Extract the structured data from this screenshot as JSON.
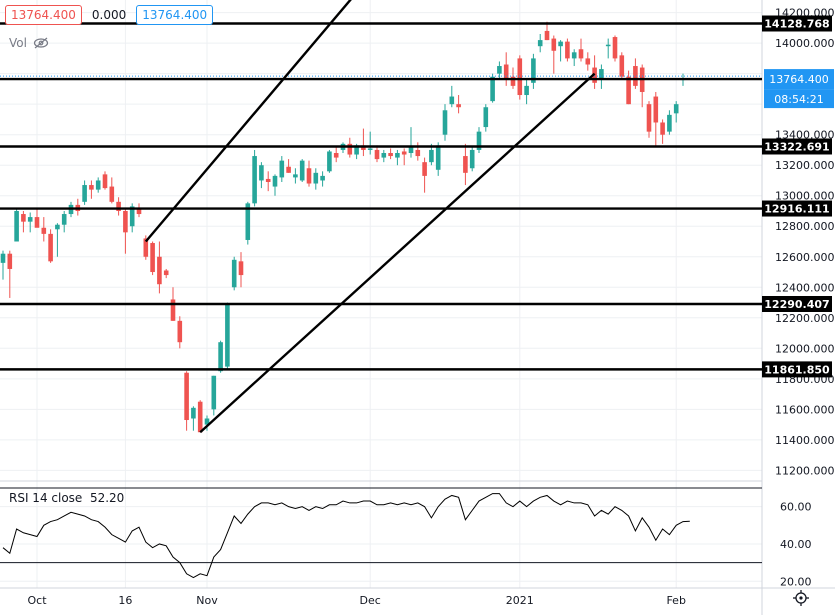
{
  "legend": {
    "open": "13764.400",
    "change": "0.000",
    "close": "13764.400"
  },
  "volume_label": "Vol",
  "rsi_label": "RSI 14 close",
  "rsi_value": "52.20",
  "price_tag": {
    "price": "13764.400",
    "countdown": "08:54:21"
  },
  "colors": {
    "up": "#26a69a",
    "down": "#ef5350",
    "blue": "#2196f3",
    "line": "#000000"
  },
  "chart_data": [
    {
      "type": "candlestick",
      "x_ticks": [
        "Oct",
        "16",
        "Nov",
        "Dec",
        "2021",
        "Feb"
      ],
      "y_ticks": [
        "14200.000",
        "14000.000",
        "13800.000",
        "13600.000",
        "13400.000",
        "13200.000",
        "13000.000",
        "12800.000",
        "12600.000",
        "12400.000",
        "12200.000",
        "12000.000",
        "11800.000",
        "11600.000",
        "11400.000",
        "11200.000"
      ],
      "ylim": [
        11150,
        14250
      ],
      "grid": true,
      "candles": [
        {
          "o": 12560,
          "h": 12640,
          "l": 12450,
          "c": 12620
        },
        {
          "o": 12620,
          "h": 12640,
          "l": 12330,
          "c": 12520
        },
        {
          "o": 12700,
          "h": 12920,
          "l": 12700,
          "c": 12900
        },
        {
          "o": 12880,
          "h": 12900,
          "l": 12760,
          "c": 12830
        },
        {
          "o": 12830,
          "h": 12890,
          "l": 12760,
          "c": 12860
        },
        {
          "o": 12860,
          "h": 12920,
          "l": 12800,
          "c": 12790
        },
        {
          "o": 12790,
          "h": 12860,
          "l": 12700,
          "c": 12750
        },
        {
          "o": 12750,
          "h": 12780,
          "l": 12560,
          "c": 12570
        },
        {
          "o": 12780,
          "h": 12820,
          "l": 12600,
          "c": 12810
        },
        {
          "o": 12810,
          "h": 12900,
          "l": 12760,
          "c": 12880
        },
        {
          "o": 12880,
          "h": 12960,
          "l": 12860,
          "c": 12940
        },
        {
          "o": 12940,
          "h": 12980,
          "l": 12870,
          "c": 12900
        },
        {
          "o": 12960,
          "h": 13100,
          "l": 12940,
          "c": 13070
        },
        {
          "o": 13070,
          "h": 13100,
          "l": 12980,
          "c": 13040
        },
        {
          "o": 13040,
          "h": 13120,
          "l": 13020,
          "c": 13100
        },
        {
          "o": 13140,
          "h": 13160,
          "l": 13040,
          "c": 13050
        },
        {
          "o": 13060,
          "h": 13120,
          "l": 12950,
          "c": 12960
        },
        {
          "o": 12960,
          "h": 12990,
          "l": 12870,
          "c": 12900
        },
        {
          "o": 12900,
          "h": 12920,
          "l": 12620,
          "c": 12760
        },
        {
          "o": 12800,
          "h": 12950,
          "l": 12760,
          "c": 12930
        },
        {
          "o": 12910,
          "h": 12950,
          "l": 12860,
          "c": 12880
        },
        {
          "o": 12720,
          "h": 12740,
          "l": 12580,
          "c": 12600
        },
        {
          "o": 12690,
          "h": 12700,
          "l": 12480,
          "c": 12500
        },
        {
          "o": 12600,
          "h": 12700,
          "l": 12360,
          "c": 12420
        },
        {
          "o": 12510,
          "h": 12520,
          "l": 12460,
          "c": 12480
        },
        {
          "o": 12320,
          "h": 12400,
          "l": 12180,
          "c": 12180
        },
        {
          "o": 12180,
          "h": 12210,
          "l": 12000,
          "c": 12040
        },
        {
          "o": 11840,
          "h": 11850,
          "l": 11460,
          "c": 11530
        },
        {
          "o": 11540,
          "h": 11620,
          "l": 11460,
          "c": 11610
        },
        {
          "o": 11650,
          "h": 11660,
          "l": 11450,
          "c": 11450
        },
        {
          "o": 11500,
          "h": 11560,
          "l": 11460,
          "c": 11540
        },
        {
          "o": 11600,
          "h": 11820,
          "l": 11560,
          "c": 11820
        },
        {
          "o": 11850,
          "h": 12050,
          "l": 11840,
          "c": 12040
        },
        {
          "o": 11880,
          "h": 12300,
          "l": 11860,
          "c": 12290
        },
        {
          "o": 12400,
          "h": 12600,
          "l": 12380,
          "c": 12580
        },
        {
          "o": 12570,
          "h": 12630,
          "l": 12400,
          "c": 12480
        },
        {
          "o": 12710,
          "h": 12960,
          "l": 12680,
          "c": 12950
        },
        {
          "o": 12950,
          "h": 13300,
          "l": 12930,
          "c": 13260
        },
        {
          "o": 13100,
          "h": 13220,
          "l": 13050,
          "c": 13200
        },
        {
          "o": 13110,
          "h": 13160,
          "l": 13030,
          "c": 13090
        },
        {
          "o": 13060,
          "h": 13140,
          "l": 13000,
          "c": 13130
        },
        {
          "o": 13120,
          "h": 13260,
          "l": 13090,
          "c": 13230
        },
        {
          "o": 13190,
          "h": 13240,
          "l": 13150,
          "c": 13150
        },
        {
          "o": 13120,
          "h": 13180,
          "l": 13080,
          "c": 13140
        },
        {
          "o": 13100,
          "h": 13240,
          "l": 13090,
          "c": 13230
        },
        {
          "o": 13180,
          "h": 13230,
          "l": 13060,
          "c": 13080
        },
        {
          "o": 13080,
          "h": 13180,
          "l": 13040,
          "c": 13150
        },
        {
          "o": 13100,
          "h": 13160,
          "l": 13060,
          "c": 13130
        },
        {
          "o": 13160,
          "h": 13300,
          "l": 13150,
          "c": 13290
        },
        {
          "o": 13280,
          "h": 13320,
          "l": 13220,
          "c": 13250
        },
        {
          "o": 13300,
          "h": 13350,
          "l": 13280,
          "c": 13340
        },
        {
          "o": 13340,
          "h": 13380,
          "l": 13250,
          "c": 13270
        },
        {
          "o": 13270,
          "h": 13340,
          "l": 13240,
          "c": 13330
        },
        {
          "o": 13330,
          "h": 13440,
          "l": 13260,
          "c": 13300
        },
        {
          "o": 13300,
          "h": 13420,
          "l": 13270,
          "c": 13310
        },
        {
          "o": 13300,
          "h": 13330,
          "l": 13220,
          "c": 13240
        },
        {
          "o": 13250,
          "h": 13300,
          "l": 13220,
          "c": 13280
        },
        {
          "o": 13280,
          "h": 13310,
          "l": 13240,
          "c": 13260
        },
        {
          "o": 13250,
          "h": 13300,
          "l": 13200,
          "c": 13280
        },
        {
          "o": 13290,
          "h": 13310,
          "l": 13200,
          "c": 13270
        },
        {
          "o": 13280,
          "h": 13450,
          "l": 13250,
          "c": 13320
        },
        {
          "o": 13300,
          "h": 13350,
          "l": 13230,
          "c": 13260
        },
        {
          "o": 13220,
          "h": 13250,
          "l": 13020,
          "c": 13130
        },
        {
          "o": 13220,
          "h": 13340,
          "l": 13200,
          "c": 13300
        },
        {
          "o": 13170,
          "h": 13350,
          "l": 13130,
          "c": 13330
        },
        {
          "o": 13400,
          "h": 13600,
          "l": 13360,
          "c": 13560
        },
        {
          "o": 13600,
          "h": 13720,
          "l": 13580,
          "c": 13650
        },
        {
          "o": 13600,
          "h": 13660,
          "l": 13540,
          "c": 13580
        },
        {
          "o": 13260,
          "h": 13340,
          "l": 13070,
          "c": 13150
        },
        {
          "o": 13180,
          "h": 13320,
          "l": 13160,
          "c": 13300
        },
        {
          "o": 13300,
          "h": 13450,
          "l": 13280,
          "c": 13420
        },
        {
          "o": 13450,
          "h": 13600,
          "l": 13420,
          "c": 13580
        },
        {
          "o": 13620,
          "h": 13800,
          "l": 13610,
          "c": 13780
        },
        {
          "o": 13800,
          "h": 13880,
          "l": 13760,
          "c": 13850
        },
        {
          "o": 13860,
          "h": 13940,
          "l": 13720,
          "c": 13760
        },
        {
          "o": 13780,
          "h": 13840,
          "l": 13700,
          "c": 13720
        },
        {
          "o": 13900,
          "h": 13920,
          "l": 13630,
          "c": 13660
        },
        {
          "o": 13660,
          "h": 13760,
          "l": 13600,
          "c": 13720
        },
        {
          "o": 13740,
          "h": 13930,
          "l": 13700,
          "c": 13900
        },
        {
          "o": 13980,
          "h": 14060,
          "l": 13940,
          "c": 14020
        },
        {
          "o": 14080,
          "h": 14140,
          "l": 14020,
          "c": 14020
        },
        {
          "o": 14030,
          "h": 14050,
          "l": 13800,
          "c": 13950
        },
        {
          "o": 13980,
          "h": 14020,
          "l": 13880,
          "c": 14010
        },
        {
          "o": 14010,
          "h": 14030,
          "l": 13880,
          "c": 13900
        },
        {
          "o": 13900,
          "h": 13960,
          "l": 13850,
          "c": 13940
        },
        {
          "o": 13960,
          "h": 14030,
          "l": 13880,
          "c": 13900
        },
        {
          "o": 13900,
          "h": 13940,
          "l": 13820,
          "c": 13860
        },
        {
          "o": 13840,
          "h": 13920,
          "l": 13700,
          "c": 13740
        },
        {
          "o": 13760,
          "h": 13860,
          "l": 13700,
          "c": 13830
        },
        {
          "o": 13980,
          "h": 14030,
          "l": 13900,
          "c": 13990
        },
        {
          "o": 14040,
          "h": 14050,
          "l": 13880,
          "c": 13900
        },
        {
          "o": 13920,
          "h": 13940,
          "l": 13760,
          "c": 13780
        },
        {
          "o": 13780,
          "h": 13820,
          "l": 13600,
          "c": 13600
        },
        {
          "o": 13850,
          "h": 13900,
          "l": 13700,
          "c": 13720
        },
        {
          "o": 13840,
          "h": 13860,
          "l": 13580,
          "c": 13680
        },
        {
          "o": 13600,
          "h": 13620,
          "l": 13380,
          "c": 13420
        },
        {
          "o": 13650,
          "h": 13680,
          "l": 13320,
          "c": 13480
        },
        {
          "o": 13480,
          "h": 13500,
          "l": 13340,
          "c": 13400
        },
        {
          "o": 13420,
          "h": 13560,
          "l": 13400,
          "c": 13530
        },
        {
          "o": 13540,
          "h": 13620,
          "l": 13480,
          "c": 13600
        },
        {
          "o": 13760,
          "h": 13800,
          "l": 13720,
          "c": 13764.4
        }
      ],
      "horizontal_levels": [
        {
          "price": 14128.768,
          "label": "14128.768"
        },
        {
          "price": 13764.4,
          "label": ""
        },
        {
          "price": 13322.691,
          "label": "13322.691"
        },
        {
          "price": 12916.111,
          "label": "12916.111"
        },
        {
          "price": 12290.407,
          "label": "12290.407"
        },
        {
          "price": 11861.85,
          "label": "11861.850"
        }
      ],
      "trend_lines": [
        {
          "from": {
            "i": 21,
            "price": 12700
          },
          "to": {
            "i": 59,
            "price": 14700
          }
        },
        {
          "from": {
            "i": 29,
            "price": 11450
          },
          "to": {
            "i": 87,
            "price": 13800
          }
        }
      ]
    },
    {
      "type": "line",
      "name": "RSI 14 close",
      "ylim": [
        18,
        70
      ],
      "y_ticks": [
        "60.00",
        "40.00",
        "20.00"
      ],
      "levels": [
        70,
        30
      ],
      "values": [
        38,
        35,
        48,
        46,
        45,
        44,
        50,
        52,
        53,
        55,
        57,
        56,
        55,
        53,
        52,
        49,
        45,
        43,
        41,
        47,
        49,
        41,
        38,
        40,
        39,
        33,
        30,
        24,
        22,
        24,
        23,
        33,
        37,
        46,
        55,
        51,
        56,
        60,
        62,
        62,
        61,
        62,
        60,
        59,
        60,
        58,
        60,
        59,
        61,
        61,
        63,
        62,
        62,
        63,
        63,
        61,
        61,
        62,
        61,
        62,
        61,
        62,
        60,
        54,
        60,
        64,
        66,
        65,
        53,
        58,
        63,
        65,
        67,
        67,
        62,
        60,
        63,
        60,
        63,
        65,
        66,
        63,
        61,
        63,
        62,
        62,
        61,
        55,
        58,
        56,
        60,
        58,
        55,
        47,
        54,
        49,
        42,
        48,
        45,
        50,
        52,
        52.2
      ],
      "x_ticks": [
        "Oct",
        "16",
        "Nov",
        "Dec",
        "2021",
        "Feb"
      ]
    }
  ]
}
